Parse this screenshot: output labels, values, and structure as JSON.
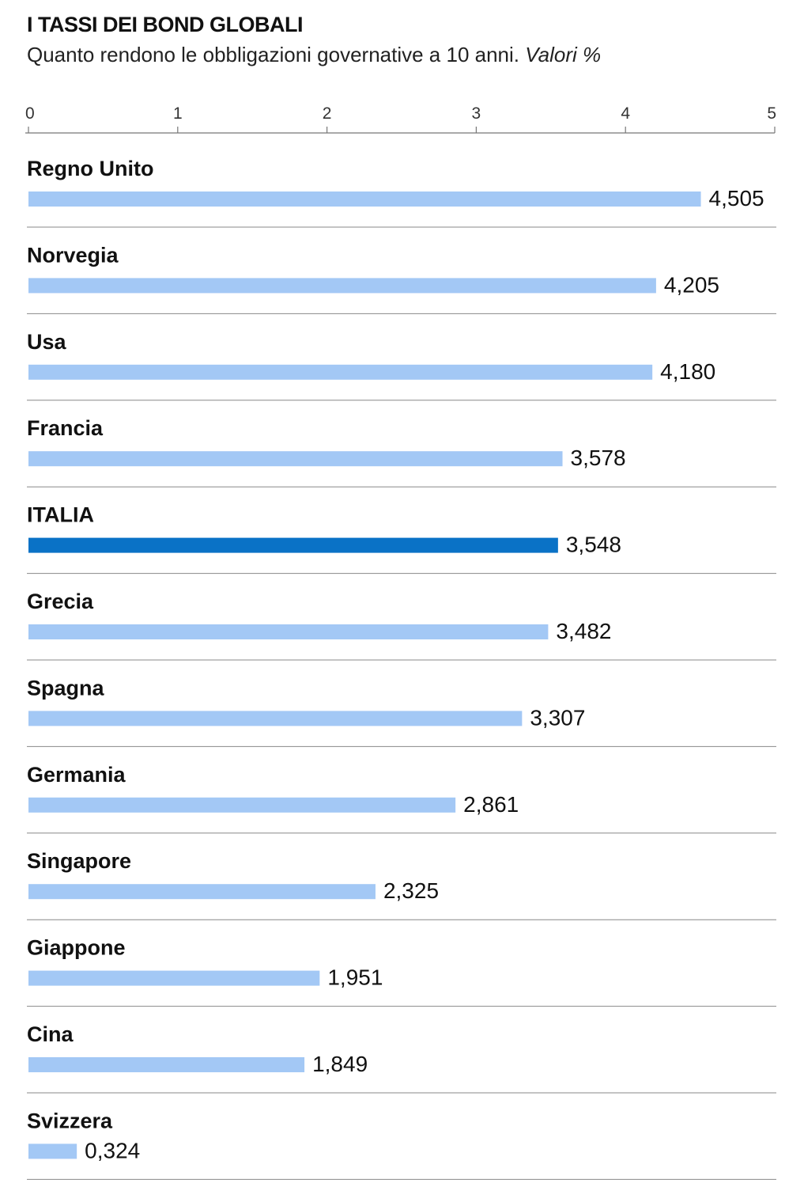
{
  "chart_data": {
    "type": "bar",
    "title": "I TASSI DEI BOND GLOBALI",
    "subtitle": "Quanto rendono le obbligazioni governative a 10 anni.",
    "subtitle_unit": "Valori %",
    "xlim": [
      0,
      5
    ],
    "ticks": [
      0,
      1,
      2,
      3,
      4,
      5
    ],
    "tick_labels": [
      "0",
      "1",
      "2",
      "3",
      "4",
      "5"
    ],
    "categories": [
      "Regno Unito",
      "Norvegia",
      "Usa",
      "Francia",
      "ITALIA",
      "Grecia",
      "Spagna",
      "Germania",
      "Singapore",
      "Giappone",
      "Cina",
      "Svizzera"
    ],
    "values": [
      4.505,
      4.205,
      4.18,
      3.578,
      3.548,
      3.482,
      3.307,
      2.861,
      2.325,
      1.951,
      1.849,
      0.324
    ],
    "value_labels": [
      "4,505",
      "4,205",
      "4,180",
      "3,578",
      "3,548",
      "3,482",
      "3,307",
      "2,861",
      "2,325",
      "1,951",
      "1,849",
      "0,324"
    ],
    "highlight": "ITALIA",
    "grid": false,
    "colors": {
      "bar": "#a3c8f5",
      "highlight": "#0a72c6",
      "text": "#111111",
      "rule": "#888888"
    }
  }
}
